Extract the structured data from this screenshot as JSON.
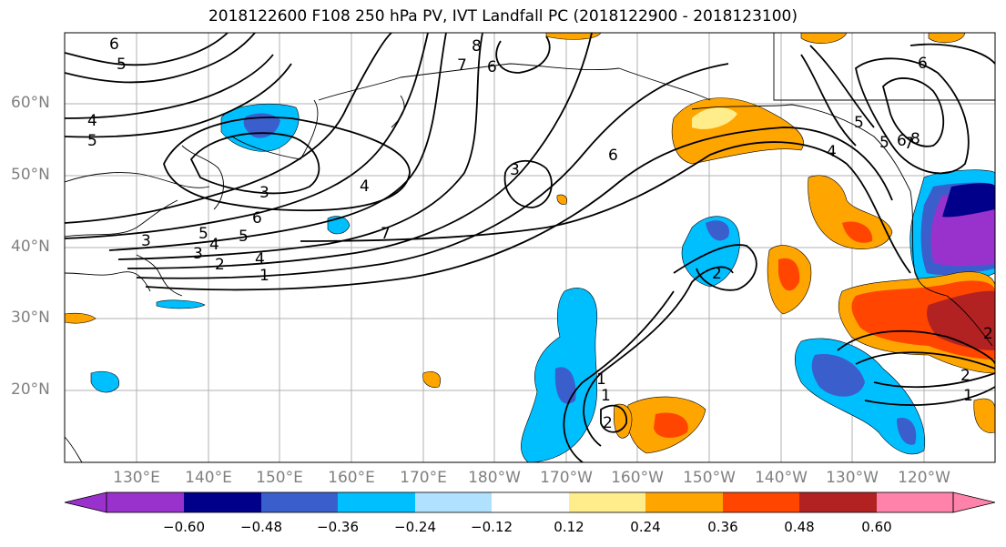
{
  "title": "2018122600 F108 250 hPa PV, IVT Landfall PC (2018122900 - 2018123100)",
  "lat_labels": [
    "60°N",
    "50°N",
    "40°N",
    "30°N",
    "20°N"
  ],
  "lon_labels": [
    "130°E",
    "140°E",
    "150°E",
    "160°E",
    "170°E",
    "180°W",
    "170°W",
    "160°W",
    "150°W",
    "140°W",
    "130°W",
    "120°W"
  ],
  "colorbar": {
    "ticks": [
      "−0.60",
      "−0.48",
      "−0.36",
      "−0.24",
      "−0.12",
      "0.12",
      "0.24",
      "0.36",
      "0.48",
      "0.60"
    ],
    "colors": [
      "#9932cc",
      "#00008b",
      "#3a5fcd",
      "#00bfff",
      "#b0e2ff",
      "#ffffff",
      "#ffec8b",
      "#ffa500",
      "#ff4500",
      "#b22222",
      "#ff82ab"
    ]
  },
  "contour_labels": [
    "6",
    "5",
    "4",
    "5",
    "3",
    "8",
    "7",
    "6",
    "6",
    "3",
    "4",
    "5",
    "4",
    "3",
    "2",
    "1",
    "7",
    "6",
    "5",
    "4",
    "3",
    "2",
    "1",
    "1",
    "2",
    "2",
    "2",
    "1",
    "6",
    "5",
    "4",
    "5",
    "6",
    "7",
    "8"
  ],
  "shading_colors": {
    "light_blue": "#b0e2ff",
    "blue": "#00bfff",
    "mid_blue": "#3a5fcd",
    "navy": "#00008b",
    "purple": "#9932cc",
    "yellow": "#ffec8b",
    "orange": "#ffa500",
    "red_orange": "#ff4500",
    "dark_red": "#b22222"
  }
}
